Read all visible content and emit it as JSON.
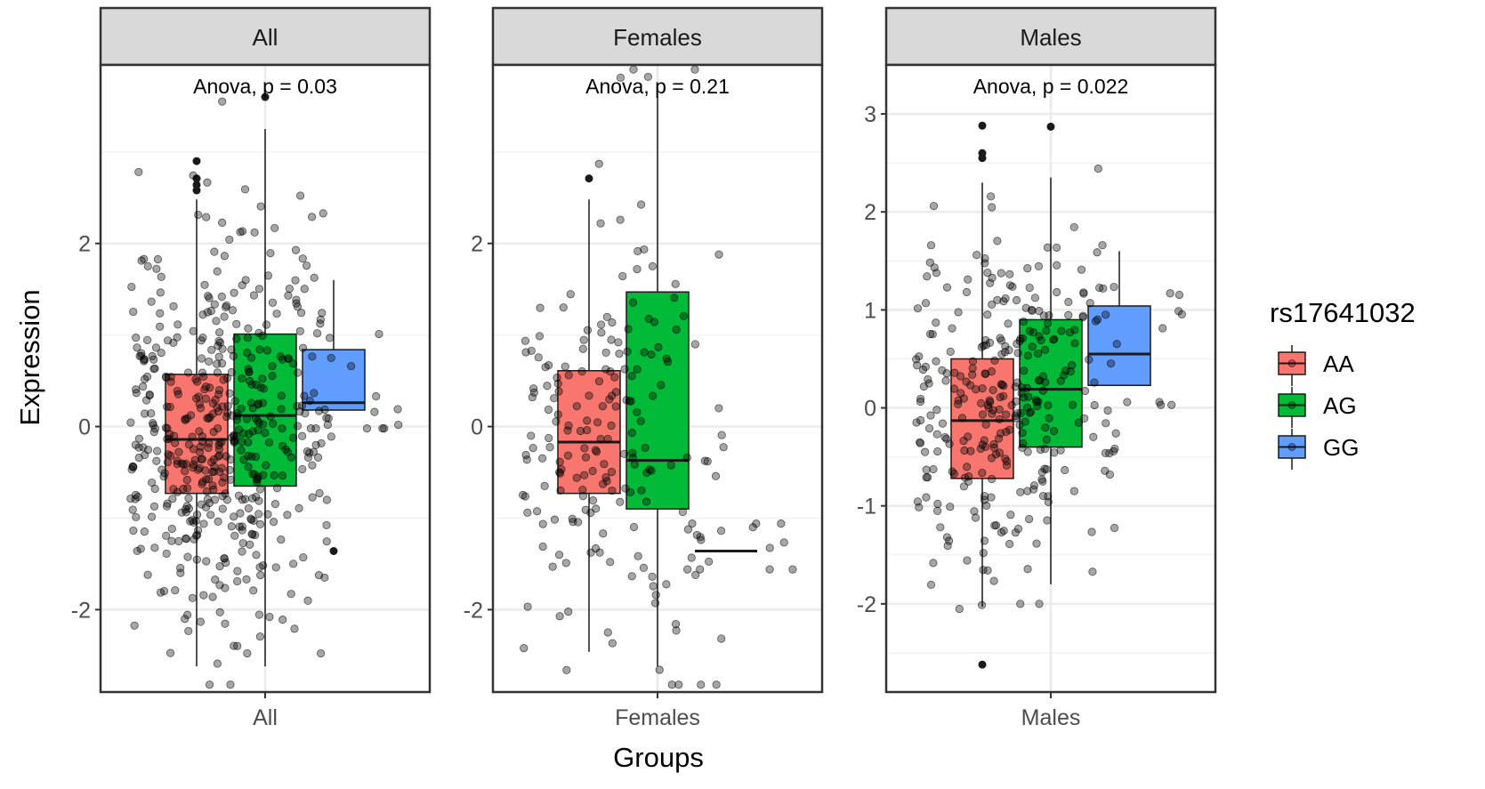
{
  "chart_data": {
    "type": "box",
    "xlabel": "Groups",
    "ylabel": "Expression",
    "legend": {
      "title": "rs17641032",
      "placement": "right",
      "items": [
        {
          "label": "AA",
          "color": "#F8766D"
        },
        {
          "label": "AG",
          "color": "#00BA38"
        },
        {
          "label": "GG",
          "color": "#619CFF"
        }
      ]
    },
    "panels": [
      {
        "strip": "All",
        "x_tick": "All",
        "annotation": "Anova, p = 0.03",
        "ylim": [
          -2.9,
          3.95
        ],
        "yticks": [
          -2,
          0,
          2
        ],
        "boxes": [
          {
            "genotype": "AA",
            "q1": -0.73,
            "median": -0.14,
            "q3": 0.57,
            "whisker_low": -2.62,
            "whisker_high": 2.48,
            "outliers": [
              2.58,
              2.64,
              2.71,
              2.9
            ]
          },
          {
            "genotype": "AG",
            "q1": -0.65,
            "median": 0.12,
            "q3": 1.01,
            "whisker_low": -2.62,
            "whisker_high": 3.25,
            "outliers": [
              3.6
            ]
          },
          {
            "genotype": "GG",
            "q1": 0.18,
            "median": 0.26,
            "q3": 0.84,
            "whisker_low": 0.18,
            "whisker_high": 1.6,
            "outliers": [
              -1.36
            ]
          }
        ]
      },
      {
        "strip": "Females",
        "x_tick": "Females",
        "annotation": "Anova, p = 0.21",
        "ylim": [
          -2.9,
          3.95
        ],
        "yticks": [
          -2,
          0,
          2
        ],
        "boxes": [
          {
            "genotype": "AA",
            "q1": -0.73,
            "median": -0.17,
            "q3": 0.61,
            "whisker_low": -2.46,
            "whisker_high": 2.48,
            "outliers": [
              2.71
            ]
          },
          {
            "genotype": "AG",
            "q1": -0.9,
            "median": -0.37,
            "q3": 1.47,
            "whisker_low": -2.62,
            "whisker_high": 3.6,
            "outliers": []
          },
          {
            "genotype": "GG",
            "q1": -1.36,
            "median": -1.36,
            "q3": -1.36,
            "whisker_low": -1.36,
            "whisker_high": -1.36,
            "outliers": []
          }
        ]
      },
      {
        "strip": "Males",
        "x_tick": "Males",
        "annotation": "Anova, p = 0.022",
        "ylim": [
          -2.9,
          3.5
        ],
        "yticks": [
          -2,
          -1,
          0,
          1,
          2,
          3
        ],
        "boxes": [
          {
            "genotype": "AA",
            "q1": -0.72,
            "median": -0.13,
            "q3": 0.5,
            "whisker_low": -2.03,
            "whisker_high": 2.3,
            "outliers": [
              2.55,
              2.6,
              2.88,
              -2.62
            ]
          },
          {
            "genotype": "AG",
            "q1": -0.4,
            "median": 0.19,
            "q3": 0.9,
            "whisker_low": -1.8,
            "whisker_high": 2.35,
            "outliers": [
              2.87
            ]
          },
          {
            "genotype": "GG",
            "q1": 0.23,
            "median": 0.55,
            "q3": 1.04,
            "whisker_low": 0.23,
            "whisker_high": 1.6,
            "outliers": []
          }
        ]
      }
    ],
    "jitter_points": [
      {
        "panel": 0,
        "n": 520,
        "note": ""
      },
      {
        "panel": 1,
        "n": 210
      },
      {
        "panel": 2,
        "n": 330
      }
    ],
    "grid": true,
    "colors": {
      "AA": "#F8766D",
      "AG": "#00BA38",
      "GG": "#619CFF",
      "strip_bg": "#D9D9D9",
      "grid": "#EBEBEB"
    }
  }
}
